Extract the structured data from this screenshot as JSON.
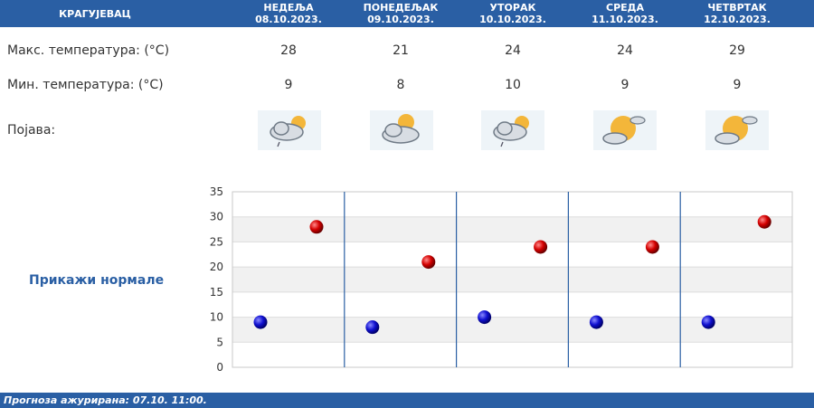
{
  "header": {
    "city": "КРАГУЈЕВАЦ",
    "days": [
      {
        "name": "НЕДЕЉА",
        "date": "08.10.2023."
      },
      {
        "name": "ПОНЕДЕЉАК",
        "date": "09.10.2023."
      },
      {
        "name": "УТОРАК",
        "date": "10.10.2023."
      },
      {
        "name": "СРЕДА",
        "date": "11.10.2023."
      },
      {
        "name": "ЧЕТВРТАК",
        "date": "12.10.2023."
      }
    ]
  },
  "rows": {
    "max_label": "Макс. температура: (°C)",
    "min_label": "Мин. температура: (°C)",
    "phenomenon_label": "Појава:",
    "max_values": [
      "28",
      "21",
      "24",
      "24",
      "29"
    ],
    "min_values": [
      "9",
      "8",
      "10",
      "9",
      "9"
    ],
    "icons": [
      "cloud-sun-light-rain-icon",
      "sun-behind-cloud-icon",
      "cloud-sun-light-rain-icon",
      "sun-with-cloud-icon",
      "sun-with-cloud-icon"
    ]
  },
  "normals_link": "Прикажи нормале",
  "footer": {
    "text": "Прогноза ажурирана:  07.10. 11:00."
  },
  "colors": {
    "header_bg": "#2a5fa4",
    "max_marker": "#c00000",
    "min_marker": "#0a0ab0"
  },
  "chart_data": {
    "type": "scatter",
    "categories": [
      "08.10.2023.",
      "09.10.2023.",
      "10.10.2023.",
      "11.10.2023.",
      "12.10.2023."
    ],
    "series": [
      {
        "name": "",
        "values": [
          28,
          21,
          24,
          24,
          29
        ],
        "color": "#c00000"
      },
      {
        "name": "",
        "values": [
          9,
          8,
          10,
          9,
          9
        ],
        "color": "#0a0ab0"
      }
    ],
    "ylim": [
      0,
      35
    ],
    "yticks": [
      "0",
      "5",
      "10",
      "15",
      "20",
      "25",
      "30",
      "35"
    ],
    "grid": true,
    "title": "",
    "xlabel": "",
    "ylabel": ""
  }
}
